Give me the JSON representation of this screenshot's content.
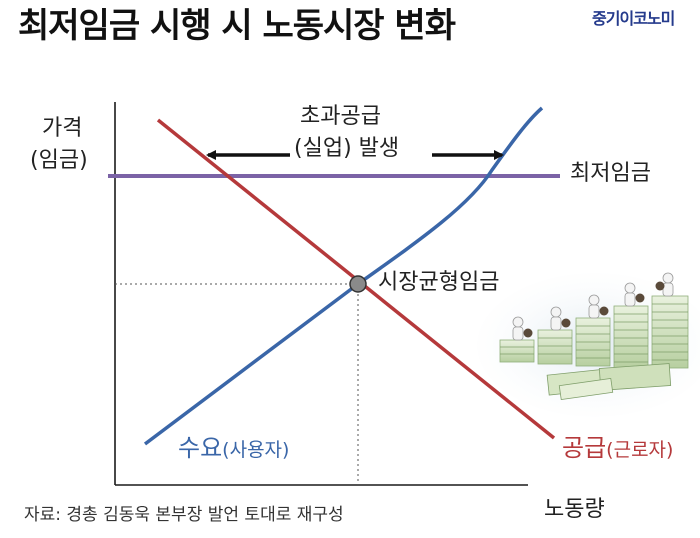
{
  "title": "최저임금 시행 시 노동시장 변화",
  "brand": "중기이코노미",
  "axes": {
    "y_label_line1": "가격",
    "y_label_line2": "(임금)",
    "x_label": "노동량"
  },
  "annotations": {
    "excess_supply_line1": "초과공급",
    "excess_supply_line2": "(실업) 발생",
    "minimum_wage": "최저임금",
    "equilibrium_wage": "시장균형임금"
  },
  "curves": {
    "demand_main": "수요",
    "demand_sub": "(사용자)",
    "supply_main": "공급",
    "supply_sub": "(근로자)"
  },
  "source": "자료: 경총 김동욱 본부장 발언 토대로 재구성",
  "colors": {
    "demand": "#3a66a8",
    "supply": "#b5393b",
    "minimum_wage_line": "#7b63a6",
    "equilibrium_point": "#8a8a8a"
  },
  "illustration": {
    "description_icon": "money-stacks-with-figures-icon"
  }
}
